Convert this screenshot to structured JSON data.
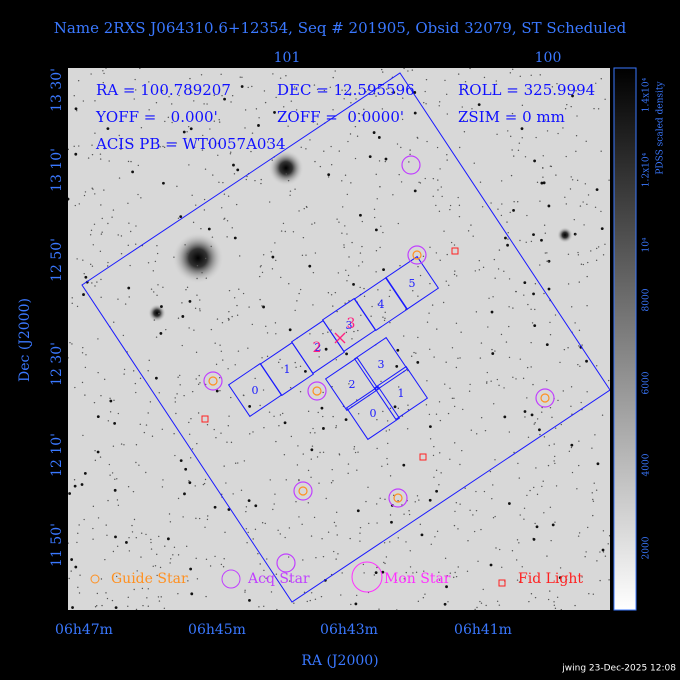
{
  "title": "Name 2RXS J064310.6+12354, Seq # 201905, Obsid 32079, ST Scheduled",
  "top_axis": {
    "ticks": [
      "101",
      "100"
    ]
  },
  "left_axis": {
    "label": "Dec (J2000)",
    "ticks": [
      "13 30'",
      "13 10'",
      "12 50'",
      "12 30'",
      "12 10'",
      "11 50'"
    ]
  },
  "bottom_axis": {
    "label": "RA (J2000)",
    "ticks": [
      "06h47m",
      "06h45m",
      "06h43m",
      "06h41m"
    ]
  },
  "info": [
    "RA = 100.789207",
    "DEC = 12.595596",
    "ROLL = 325.9994",
    "YOFF =   0.000'",
    "ZOFF =  0.0000'",
    "ZSIM = 0 mm",
    "ACIS PB = WT0057A034"
  ],
  "s_array": [
    "0",
    "1",
    "2",
    "3",
    "4",
    "5"
  ],
  "i_array": [
    "2",
    "3",
    "0",
    "1"
  ],
  "aimpoint_labels": [
    "2",
    "3"
  ],
  "legend": [
    "Guide Star",
    "Acq Star",
    "Mon Star",
    "Fid Light"
  ],
  "colorbar": {
    "title": "PDSS scaled density",
    "ticks": [
      "2000",
      "4000",
      "6000",
      "8000",
      "10⁴",
      "1.2x10⁴",
      "1.4x10⁴"
    ]
  },
  "footer": "jwing 23-Dec-2025 12:08"
}
